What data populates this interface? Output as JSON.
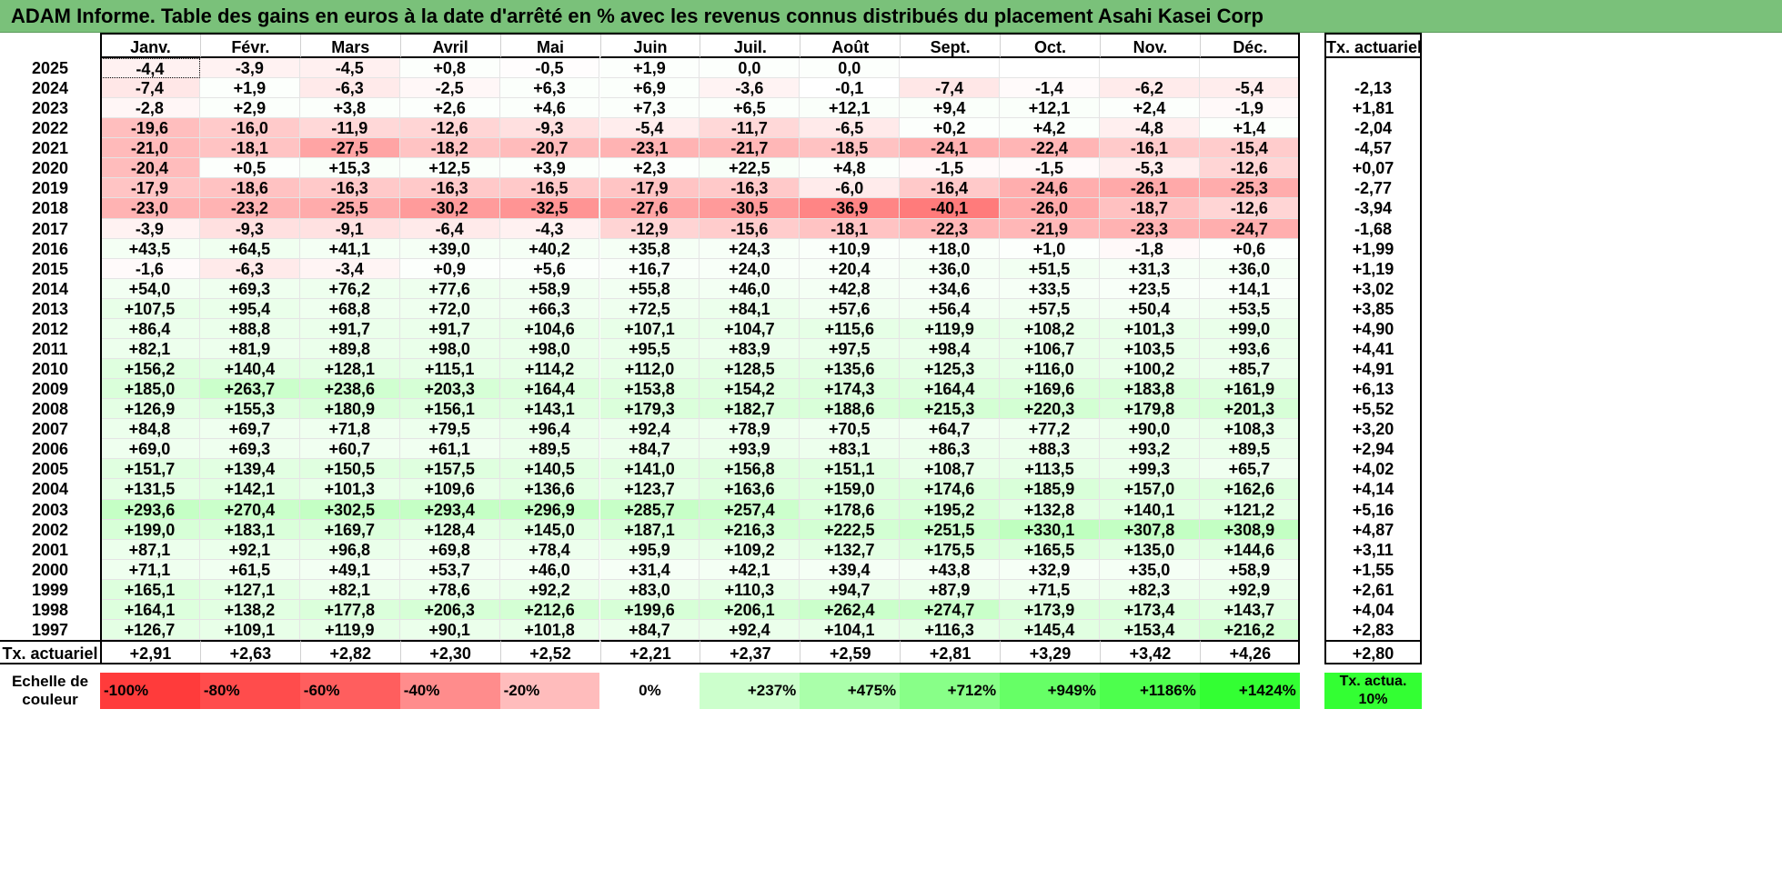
{
  "title": "ADAM Informe. Table des gains en euros à la date d'arrêté en % avec les revenus connus distribués du placement Asahi Kasei Corp",
  "colors": {
    "title_bg": "#7ac17a",
    "negative_max": "#ff3b3b",
    "positive_max": "#33ff33",
    "neutral": "#ffffff"
  },
  "chart_data": {
    "type": "heatmap",
    "columns": [
      "Janv.",
      "Févr.",
      "Mars",
      "Avril",
      "Mai",
      "Juin",
      "Juil.",
      "Août",
      "Sept.",
      "Oct.",
      "Nov.",
      "Déc."
    ],
    "rate_header": "Tx. actuariel",
    "rows": [
      {
        "year": "2025",
        "values": [
          "-4,4",
          "-3,9",
          "-4,5",
          "+0,8",
          "-0,5",
          "+1,9",
          "0,0",
          "0,0",
          "",
          "",
          "",
          ""
        ],
        "rate": ""
      },
      {
        "year": "2024",
        "values": [
          "-7,4",
          "+1,9",
          "-6,3",
          "-2,5",
          "+6,3",
          "+6,9",
          "-3,6",
          "-0,1",
          "-7,4",
          "-1,4",
          "-6,2",
          "-5,4"
        ],
        "rate": "-2,13"
      },
      {
        "year": "2023",
        "values": [
          "-2,8",
          "+2,9",
          "+3,8",
          "+2,6",
          "+4,6",
          "+7,3",
          "+6,5",
          "+12,1",
          "+9,4",
          "+12,1",
          "+2,4",
          "-1,9"
        ],
        "rate": "+1,81"
      },
      {
        "year": "2022",
        "values": [
          "-19,6",
          "-16,0",
          "-11,9",
          "-12,6",
          "-9,3",
          "-5,4",
          "-11,7",
          "-6,5",
          "+0,2",
          "+4,2",
          "-4,8",
          "+1,4"
        ],
        "rate": "-2,04"
      },
      {
        "year": "2021",
        "values": [
          "-21,0",
          "-18,1",
          "-27,5",
          "-18,2",
          "-20,7",
          "-23,1",
          "-21,7",
          "-18,5",
          "-24,1",
          "-22,4",
          "-16,1",
          "-15,4"
        ],
        "rate": "-4,57"
      },
      {
        "year": "2020",
        "values": [
          "-20,4",
          "+0,5",
          "+15,3",
          "+12,5",
          "+3,9",
          "+2,3",
          "+22,5",
          "+4,8",
          "-1,5",
          "-1,5",
          "-5,3",
          "-12,6"
        ],
        "rate": "+0,07"
      },
      {
        "year": "2019",
        "values": [
          "-17,9",
          "-18,6",
          "-16,3",
          "-16,3",
          "-16,5",
          "-17,9",
          "-16,3",
          "-6,0",
          "-16,4",
          "-24,6",
          "-26,1",
          "-25,3"
        ],
        "rate": "-2,77"
      },
      {
        "year": "2018",
        "values": [
          "-23,0",
          "-23,2",
          "-25,5",
          "-30,2",
          "-32,5",
          "-27,6",
          "-30,5",
          "-36,9",
          "-40,1",
          "-26,0",
          "-18,7",
          "-12,6"
        ],
        "rate": "-3,94"
      },
      {
        "year": "2017",
        "values": [
          "-3,9",
          "-9,3",
          "-9,1",
          "-6,4",
          "-4,3",
          "-12,9",
          "-15,6",
          "-18,1",
          "-22,3",
          "-21,9",
          "-23,3",
          "-24,7"
        ],
        "rate": "-1,68"
      },
      {
        "year": "2016",
        "values": [
          "+43,5",
          "+64,5",
          "+41,1",
          "+39,0",
          "+40,2",
          "+35,8",
          "+24,3",
          "+10,9",
          "+18,0",
          "+1,0",
          "-1,8",
          "+0,6"
        ],
        "rate": "+1,99"
      },
      {
        "year": "2015",
        "values": [
          "-1,6",
          "-6,3",
          "-3,4",
          "+0,9",
          "+5,6",
          "+16,7",
          "+24,0",
          "+20,4",
          "+36,0",
          "+51,5",
          "+31,3",
          "+36,0"
        ],
        "rate": "+1,19"
      },
      {
        "year": "2014",
        "values": [
          "+54,0",
          "+69,3",
          "+76,2",
          "+77,6",
          "+58,9",
          "+55,8",
          "+46,0",
          "+42,8",
          "+34,6",
          "+33,5",
          "+23,5",
          "+14,1"
        ],
        "rate": "+3,02"
      },
      {
        "year": "2013",
        "values": [
          "+107,5",
          "+95,4",
          "+68,8",
          "+72,0",
          "+66,3",
          "+72,5",
          "+84,1",
          "+57,6",
          "+56,4",
          "+57,5",
          "+50,4",
          "+53,5"
        ],
        "rate": "+3,85"
      },
      {
        "year": "2012",
        "values": [
          "+86,4",
          "+88,8",
          "+91,7",
          "+91,7",
          "+104,6",
          "+107,1",
          "+104,7",
          "+115,6",
          "+119,9",
          "+108,2",
          "+101,3",
          "+99,0"
        ],
        "rate": "+4,90"
      },
      {
        "year": "2011",
        "values": [
          "+82,1",
          "+81,9",
          "+89,8",
          "+98,0",
          "+98,0",
          "+95,5",
          "+83,9",
          "+97,5",
          "+98,4",
          "+106,7",
          "+103,5",
          "+93,6"
        ],
        "rate": "+4,41"
      },
      {
        "year": "2010",
        "values": [
          "+156,2",
          "+140,4",
          "+128,1",
          "+115,1",
          "+114,2",
          "+112,0",
          "+128,5",
          "+135,6",
          "+125,3",
          "+116,0",
          "+100,2",
          "+85,7"
        ],
        "rate": "+4,91"
      },
      {
        "year": "2009",
        "values": [
          "+185,0",
          "+263,7",
          "+238,6",
          "+203,3",
          "+164,4",
          "+153,8",
          "+154,2",
          "+174,3",
          "+164,4",
          "+169,6",
          "+183,8",
          "+161,9"
        ],
        "rate": "+6,13"
      },
      {
        "year": "2008",
        "values": [
          "+126,9",
          "+155,3",
          "+180,9",
          "+156,1",
          "+143,1",
          "+179,3",
          "+182,7",
          "+188,6",
          "+215,3",
          "+220,3",
          "+179,8",
          "+201,3"
        ],
        "rate": "+5,52"
      },
      {
        "year": "2007",
        "values": [
          "+84,8",
          "+69,7",
          "+71,8",
          "+79,5",
          "+96,4",
          "+92,4",
          "+78,9",
          "+70,5",
          "+64,7",
          "+77,2",
          "+90,0",
          "+108,3"
        ],
        "rate": "+3,20"
      },
      {
        "year": "2006",
        "values": [
          "+69,0",
          "+69,3",
          "+60,7",
          "+61,1",
          "+89,5",
          "+84,7",
          "+93,9",
          "+83,1",
          "+86,3",
          "+88,3",
          "+93,2",
          "+89,5"
        ],
        "rate": "+2,94"
      },
      {
        "year": "2005",
        "values": [
          "+151,7",
          "+139,4",
          "+150,5",
          "+157,5",
          "+140,5",
          "+141,0",
          "+156,8",
          "+151,1",
          "+108,7",
          "+113,5",
          "+99,3",
          "+65,7"
        ],
        "rate": "+4,02"
      },
      {
        "year": "2004",
        "values": [
          "+131,5",
          "+142,1",
          "+101,3",
          "+109,6",
          "+136,6",
          "+123,7",
          "+163,6",
          "+159,0",
          "+174,6",
          "+185,9",
          "+157,0",
          "+162,6"
        ],
        "rate": "+4,14"
      },
      {
        "year": "2003",
        "values": [
          "+293,6",
          "+270,4",
          "+302,5",
          "+293,4",
          "+296,9",
          "+285,7",
          "+257,4",
          "+178,6",
          "+195,2",
          "+132,8",
          "+140,1",
          "+121,2"
        ],
        "rate": "+5,16"
      },
      {
        "year": "2002",
        "values": [
          "+199,0",
          "+183,1",
          "+169,7",
          "+128,4",
          "+145,0",
          "+187,1",
          "+216,3",
          "+222,5",
          "+251,5",
          "+330,1",
          "+307,8",
          "+308,9"
        ],
        "rate": "+4,87"
      },
      {
        "year": "2001",
        "values": [
          "+87,1",
          "+92,1",
          "+96,8",
          "+69,8",
          "+78,4",
          "+95,9",
          "+109,2",
          "+132,7",
          "+175,5",
          "+165,5",
          "+135,0",
          "+144,6"
        ],
        "rate": "+3,11"
      },
      {
        "year": "2000",
        "values": [
          "+71,1",
          "+61,5",
          "+49,1",
          "+53,7",
          "+46,0",
          "+31,4",
          "+42,1",
          "+39,4",
          "+43,8",
          "+32,9",
          "+35,0",
          "+58,9"
        ],
        "rate": "+1,55"
      },
      {
        "year": "1999",
        "values": [
          "+165,1",
          "+127,1",
          "+82,1",
          "+78,6",
          "+92,2",
          "+83,0",
          "+110,3",
          "+94,7",
          "+87,9",
          "+71,5",
          "+82,3",
          "+92,9"
        ],
        "rate": "+2,61"
      },
      {
        "year": "1998",
        "values": [
          "+164,1",
          "+138,2",
          "+177,8",
          "+206,3",
          "+212,6",
          "+199,6",
          "+206,1",
          "+262,4",
          "+274,7",
          "+173,9",
          "+173,4",
          "+143,7"
        ],
        "rate": "+4,04"
      },
      {
        "year": "1997",
        "values": [
          "+126,7",
          "+109,1",
          "+119,9",
          "+90,1",
          "+101,8",
          "+84,7",
          "+92,4",
          "+104,1",
          "+116,3",
          "+145,4",
          "+153,4",
          "+216,2"
        ],
        "rate": "+2,83"
      }
    ],
    "footer": {
      "label": "Tx. actuariel",
      "values": [
        "+2,91",
        "+2,63",
        "+2,82",
        "+2,30",
        "+2,52",
        "+2,21",
        "+2,37",
        "+2,59",
        "+2,81",
        "+3,29",
        "+3,42",
        "+4,26"
      ],
      "rate": "+2,80"
    },
    "legend": {
      "label": "Echelle de couleur",
      "stops": [
        {
          "text": "-100%",
          "value": -100,
          "color": "#ff3b3b"
        },
        {
          "text": "-80%",
          "value": -80,
          "color": "#ff4c4c"
        },
        {
          "text": "-60%",
          "value": -60,
          "color": "#ff5e5e"
        },
        {
          "text": "-40%",
          "value": -40,
          "color": "#ff8c8c"
        },
        {
          "text": "-20%",
          "value": -20,
          "color": "#ffbcbc"
        },
        {
          "text": "0%",
          "value": 0,
          "color": "#ffffff"
        },
        {
          "text": "+237%",
          "value": 237,
          "color": "#ccffcc"
        },
        {
          "text": "+475%",
          "value": 475,
          "color": "#aaffaa"
        },
        {
          "text": "+712%",
          "value": 712,
          "color": "#88ff88"
        },
        {
          "text": "+949%",
          "value": 949,
          "color": "#66ff66"
        },
        {
          "text": "+1186%",
          "value": 1186,
          "color": "#4dff4d"
        },
        {
          "text": "+1424%",
          "value": 1424,
          "color": "#33ff33"
        }
      ],
      "rate_label": "Tx. actua. 10%",
      "rate_color": "#33ff33"
    }
  }
}
